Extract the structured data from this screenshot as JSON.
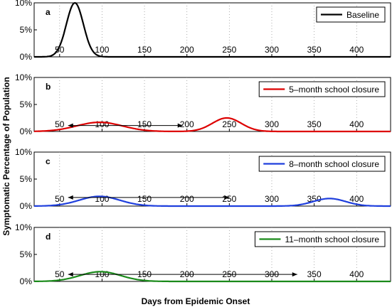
{
  "figure": {
    "xlabel": "Days from Epidemic Onset",
    "ylabel": "Symptomatic Percentage of Population"
  },
  "chart_data": [
    {
      "type": "line",
      "panel": "a",
      "xlim": [
        20,
        440
      ],
      "ylim": [
        0,
        10
      ],
      "xticks": [
        50,
        100,
        150,
        200,
        250,
        300,
        350,
        400
      ],
      "yticks": [
        "0%",
        "5%",
        "10%"
      ],
      "grid": "vertical dotted",
      "legend_position": "top-right",
      "series": [
        {
          "name": "Baseline",
          "color": "#000000",
          "peaks": [
            {
              "center": 68,
              "height": 10.0,
              "sigma": 10
            }
          ]
        }
      ],
      "arrow": null
    },
    {
      "type": "line",
      "panel": "b",
      "xlim": [
        20,
        440
      ],
      "ylim": [
        0,
        10
      ],
      "xticks": [
        50,
        100,
        150,
        200,
        250,
        300,
        350,
        400
      ],
      "yticks": [
        "0%",
        "5%",
        "10%"
      ],
      "grid": "vertical dotted",
      "legend_position": "top-right",
      "series": [
        {
          "name": "5–month school closure",
          "color": "#dd0000",
          "peaks": [
            {
              "center": 97,
              "height": 1.7,
              "sigma": 27
            },
            {
              "center": 247,
              "height": 2.5,
              "sigma": 17
            }
          ]
        }
      ],
      "arrow": {
        "from": 60,
        "to": 195,
        "y": 1.1
      }
    },
    {
      "type": "line",
      "panel": "c",
      "xlim": [
        20,
        440
      ],
      "ylim": [
        0,
        10
      ],
      "xticks": [
        50,
        100,
        150,
        200,
        250,
        300,
        350,
        400
      ],
      "yticks": [
        "0%",
        "5%",
        "10%"
      ],
      "grid": "vertical dotted",
      "legend_position": "top-right",
      "series": [
        {
          "name": "8–month school closure",
          "color": "#1f3fdd",
          "peaks": [
            {
              "center": 97,
              "height": 1.8,
              "sigma": 24
            },
            {
              "center": 368,
              "height": 1.4,
              "sigma": 19
            }
          ]
        }
      ],
      "arrow": {
        "from": 60,
        "to": 250,
        "y": 1.6
      }
    },
    {
      "type": "line",
      "panel": "d",
      "xlim": [
        20,
        440
      ],
      "ylim": [
        0,
        10
      ],
      "xticks": [
        50,
        100,
        150,
        200,
        250,
        300,
        350,
        400
      ],
      "yticks": [
        "0%",
        "5%",
        "10%"
      ],
      "grid": "vertical dotted",
      "legend_position": "top-right",
      "series": [
        {
          "name": "11–month school closure",
          "color": "#1a8a1a",
          "peaks": [
            {
              "center": 98,
              "height": 1.8,
              "sigma": 24
            }
          ]
        }
      ],
      "arrow": {
        "from": 60,
        "to": 330,
        "y": 1.3
      }
    }
  ]
}
